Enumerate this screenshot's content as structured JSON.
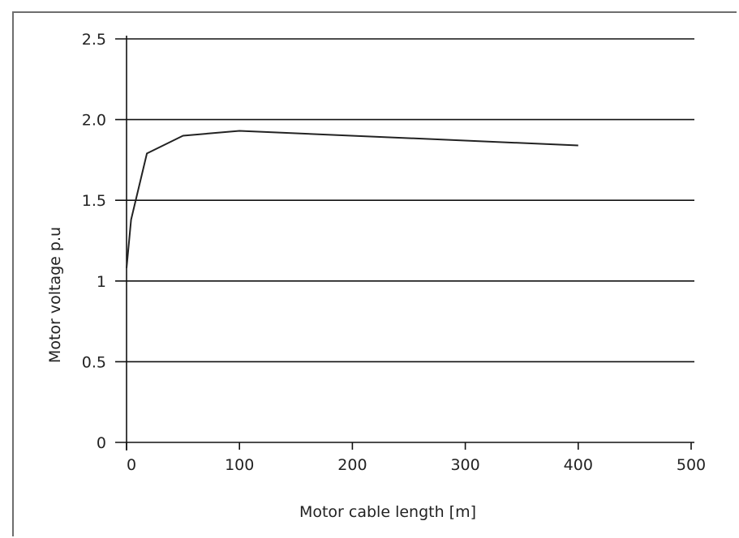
{
  "chart_data": {
    "type": "line",
    "title": "",
    "xlabel": "Motor cable length [m]",
    "ylabel": "Motor voltage p.u",
    "xlim": [
      0,
      500
    ],
    "ylim": [
      0,
      2.5
    ],
    "x_ticks": [
      {
        "value": 0,
        "label": "0"
      },
      {
        "value": 100,
        "label": "100"
      },
      {
        "value": 200,
        "label": "200"
      },
      {
        "value": 300,
        "label": "300"
      },
      {
        "value": 400,
        "label": "400"
      },
      {
        "value": 500,
        "label": "500"
      }
    ],
    "y_ticks": [
      {
        "value": 0,
        "label": "0"
      },
      {
        "value": 0.5,
        "label": "0.5"
      },
      {
        "value": 1,
        "label": "1"
      },
      {
        "value": 1.5,
        "label": "1.5"
      },
      {
        "value": 2,
        "label": "2.0"
      },
      {
        "value": 2.5,
        "label": "2.5"
      }
    ],
    "grid": "horizontal",
    "legend": "none",
    "line_color": "#222222",
    "series": [
      {
        "x": [
          0,
          4,
          18,
          50,
          100,
          400
        ],
        "y": [
          1.08,
          1.38,
          1.79,
          1.9,
          1.93,
          1.84
        ]
      }
    ]
  }
}
